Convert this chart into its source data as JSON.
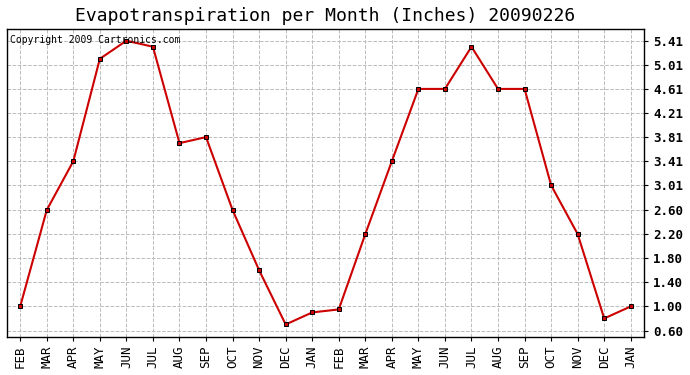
{
  "title": "Evapotranspiration per Month (Inches) 20090226",
  "copyright": "Copyright 2009 Cartronics.com",
  "months": [
    "FEB",
    "MAR",
    "APR",
    "MAY",
    "JUN",
    "JUL",
    "AUG",
    "SEP",
    "OCT",
    "NOV",
    "DEC",
    "JAN",
    "FEB",
    "MAR",
    "APR",
    "MAY",
    "JUN",
    "JUL",
    "AUG",
    "SEP",
    "OCT",
    "NOV",
    "DEC",
    "JAN"
  ],
  "values": [
    1.0,
    2.6,
    3.41,
    5.11,
    5.41,
    5.31,
    3.71,
    3.81,
    2.6,
    1.6,
    0.7,
    0.9,
    0.95,
    2.2,
    3.41,
    4.61,
    4.61,
    5.31,
    4.61,
    4.61,
    3.01,
    2.2,
    0.8,
    1.0
  ],
  "line_color": "#cc0000",
  "marker": "s",
  "marker_size": 3,
  "background_color": "#ffffff",
  "grid_color": "#bbbbbb",
  "yticks": [
    0.6,
    1.0,
    1.4,
    1.8,
    2.2,
    2.6,
    3.01,
    3.41,
    3.81,
    4.21,
    4.61,
    5.01,
    5.41
  ],
  "ylim": [
    0.5,
    5.6
  ],
  "title_fontsize": 13,
  "tick_fontsize": 9,
  "copyright_fontsize": 7
}
